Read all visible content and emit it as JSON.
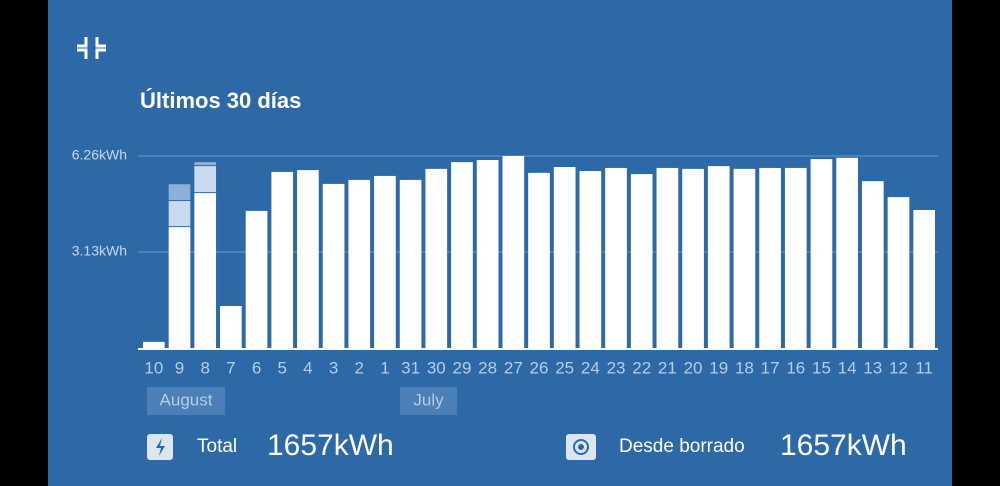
{
  "chart_data": {
    "type": "bar",
    "title": "Últimos 30 días",
    "categories": [
      "10",
      "9",
      "8",
      "7",
      "6",
      "5",
      "4",
      "3",
      "2",
      "1",
      "31",
      "30",
      "29",
      "28",
      "27",
      "26",
      "25",
      "24",
      "23",
      "22",
      "21",
      "20",
      "19",
      "18",
      "17",
      "16",
      "15",
      "14",
      "13",
      "12",
      "11"
    ],
    "series": [
      {
        "color": "#ffffff",
        "values": [
          0.2,
          3.94,
          5.05,
          1.37,
          4.47,
          5.74,
          5.8,
          5.35,
          5.48,
          5.61,
          5.48,
          5.84,
          6.06,
          6.13,
          6.26,
          5.71,
          5.9,
          5.77,
          5.87,
          5.67,
          5.87,
          5.84,
          5.93,
          5.84,
          5.87,
          5.87,
          6.16,
          6.2,
          5.44,
          4.92,
          4.5
        ]
      },
      {
        "color": "#c9d9ee",
        "values": [
          null,
          0.85,
          0.88,
          null,
          null,
          null,
          null,
          null,
          null,
          null,
          null,
          null,
          null,
          null,
          null,
          null,
          null,
          null,
          null,
          null,
          null,
          null,
          null,
          null,
          null,
          null,
          null,
          null,
          null,
          null,
          null
        ]
      },
      {
        "color": "#8eafd6",
        "values": [
          null,
          0.55,
          0.13,
          null,
          null,
          null,
          null,
          null,
          null,
          null,
          null,
          null,
          null,
          null,
          null,
          null,
          null,
          null,
          null,
          null,
          null,
          null,
          null,
          null,
          null,
          null,
          null,
          null,
          null,
          null,
          null
        ]
      }
    ],
    "months": [
      "August",
      "July"
    ],
    "ylim": [
      0,
      6.26
    ],
    "yticks": [
      {
        "value": 3.13,
        "label": "3.13kWh"
      },
      {
        "value": 6.26,
        "label": "6.26kWh"
      }
    ],
    "grid": true
  },
  "footer": {
    "total_label": "Total",
    "total_value": "1657kWh",
    "since_label": "Desde borrado",
    "since_value": "1657kWh"
  }
}
